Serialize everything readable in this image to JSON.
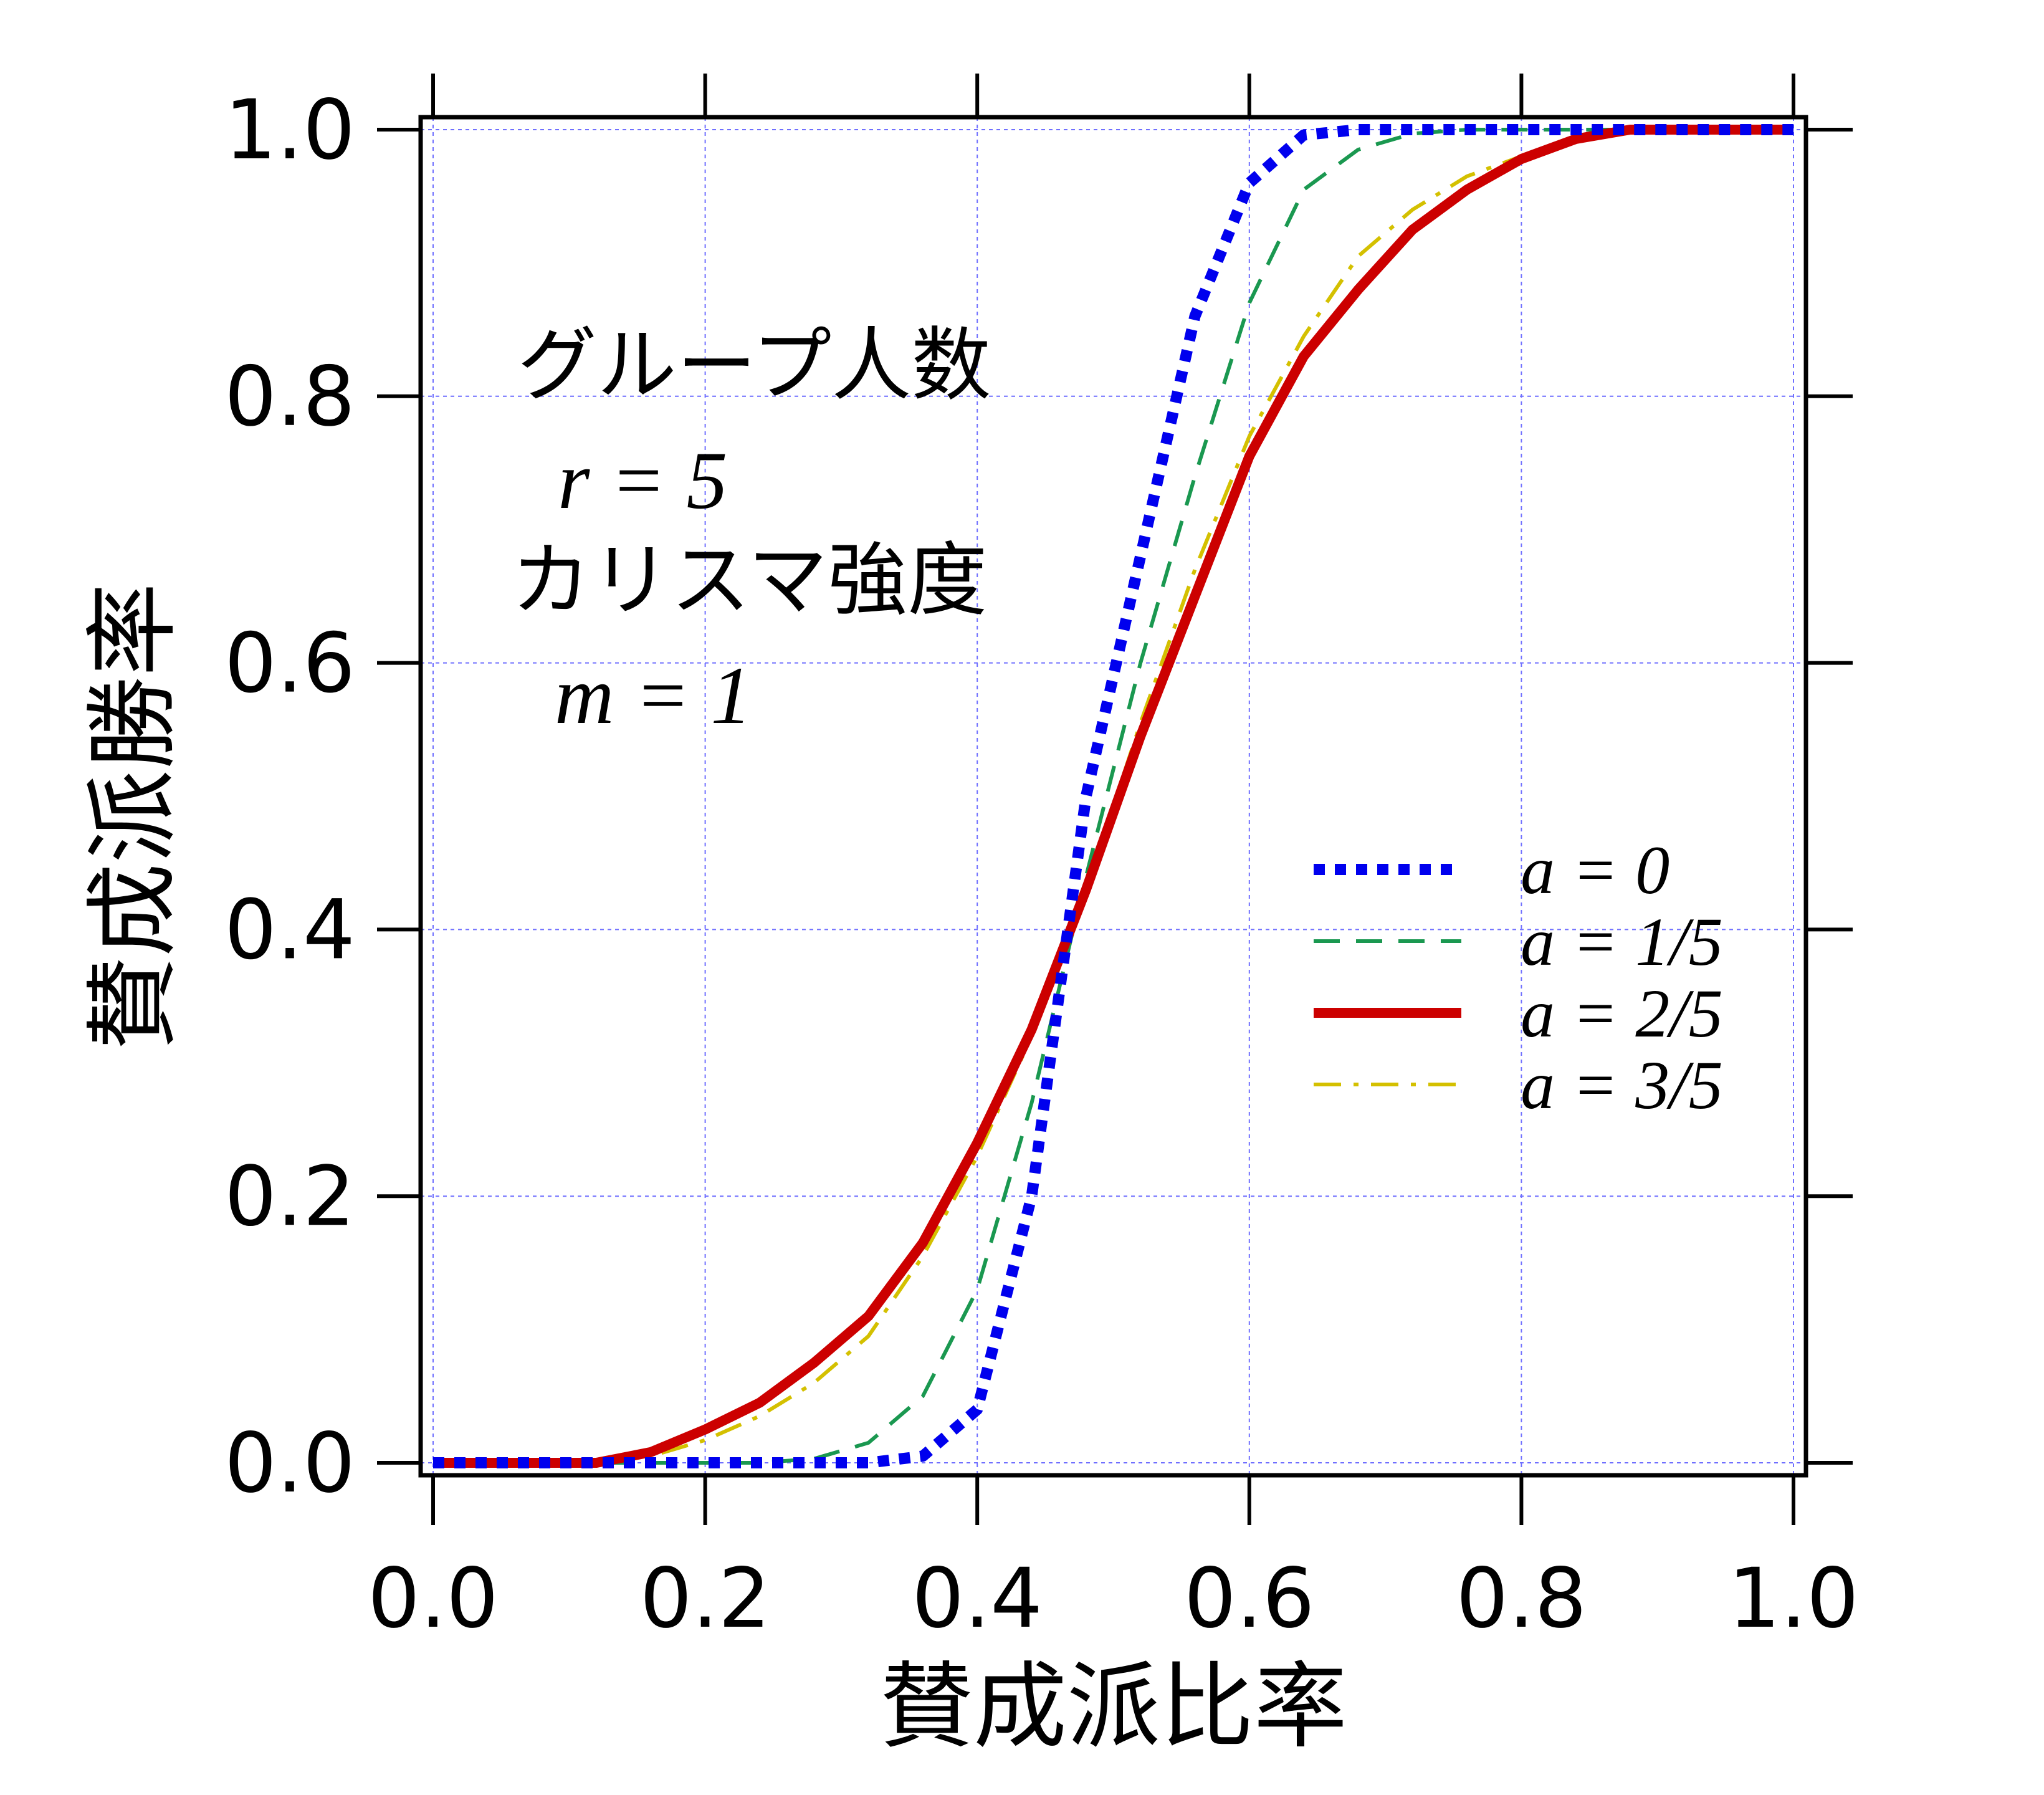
{
  "chart_data": {
    "type": "line",
    "xlabel": "賛成派比率",
    "ylabel": "賛成派勝率",
    "xlim": [
      0,
      1
    ],
    "ylim": [
      0,
      1
    ],
    "xticks": [
      "0.0",
      "0.2",
      "0.4",
      "0.6",
      "0.8",
      "1.0"
    ],
    "yticks": [
      "0.0",
      "0.2",
      "0.4",
      "0.6",
      "0.8",
      "1.0"
    ],
    "grid": true,
    "legend_position": "middle-right",
    "annotation": {
      "line1": "グループ人数",
      "line2": "r = 5",
      "line3": "カリスマ強度",
      "line4": "m = 1"
    },
    "x": [
      0.0,
      0.04,
      0.08,
      0.12,
      0.16,
      0.2,
      0.24,
      0.28,
      0.32,
      0.36,
      0.4,
      0.44,
      0.48,
      0.52,
      0.56,
      0.6,
      0.64,
      0.68,
      0.72,
      0.76,
      0.8,
      0.84,
      0.88,
      0.92,
      0.96,
      1.0
    ],
    "series": [
      {
        "name": "a = 0",
        "color": "#0000ee",
        "style": "dotted",
        "values": [
          0,
          0,
          0,
          0,
          0,
          0,
          0,
          0,
          0,
          0.005,
          0.04,
          0.2,
          0.5,
          0.68,
          0.86,
          0.96,
          0.996,
          1,
          1,
          1,
          1,
          1,
          1,
          1,
          1,
          1
        ]
      },
      {
        "name": "a = 1/5",
        "color": "#1a9850",
        "style": "dashed",
        "values": [
          0,
          0,
          0,
          0,
          0,
          0,
          0,
          0.003,
          0.015,
          0.05,
          0.13,
          0.27,
          0.44,
          0.6,
          0.74,
          0.87,
          0.955,
          0.985,
          0.997,
          1,
          1,
          1,
          1,
          1,
          1,
          1
        ]
      },
      {
        "name": "a = 2/5",
        "color": "#cc0000",
        "style": "solid",
        "values": [
          0,
          0,
          0,
          0,
          0.008,
          0.025,
          0.045,
          0.075,
          0.11,
          0.165,
          0.24,
          0.325,
          0.43,
          0.545,
          0.65,
          0.755,
          0.83,
          0.88,
          0.925,
          0.955,
          0.978,
          0.993,
          1,
          1,
          1,
          1
        ]
      },
      {
        "name": "a = 3/5",
        "color": "#d4c000",
        "style": "dashdot",
        "values": [
          0,
          0,
          0,
          0,
          0.005,
          0.017,
          0.035,
          0.06,
          0.095,
          0.155,
          0.23,
          0.32,
          0.43,
          0.555,
          0.67,
          0.77,
          0.845,
          0.905,
          0.94,
          0.965,
          0.98,
          0.994,
          1,
          1,
          1,
          1
        ]
      }
    ]
  }
}
